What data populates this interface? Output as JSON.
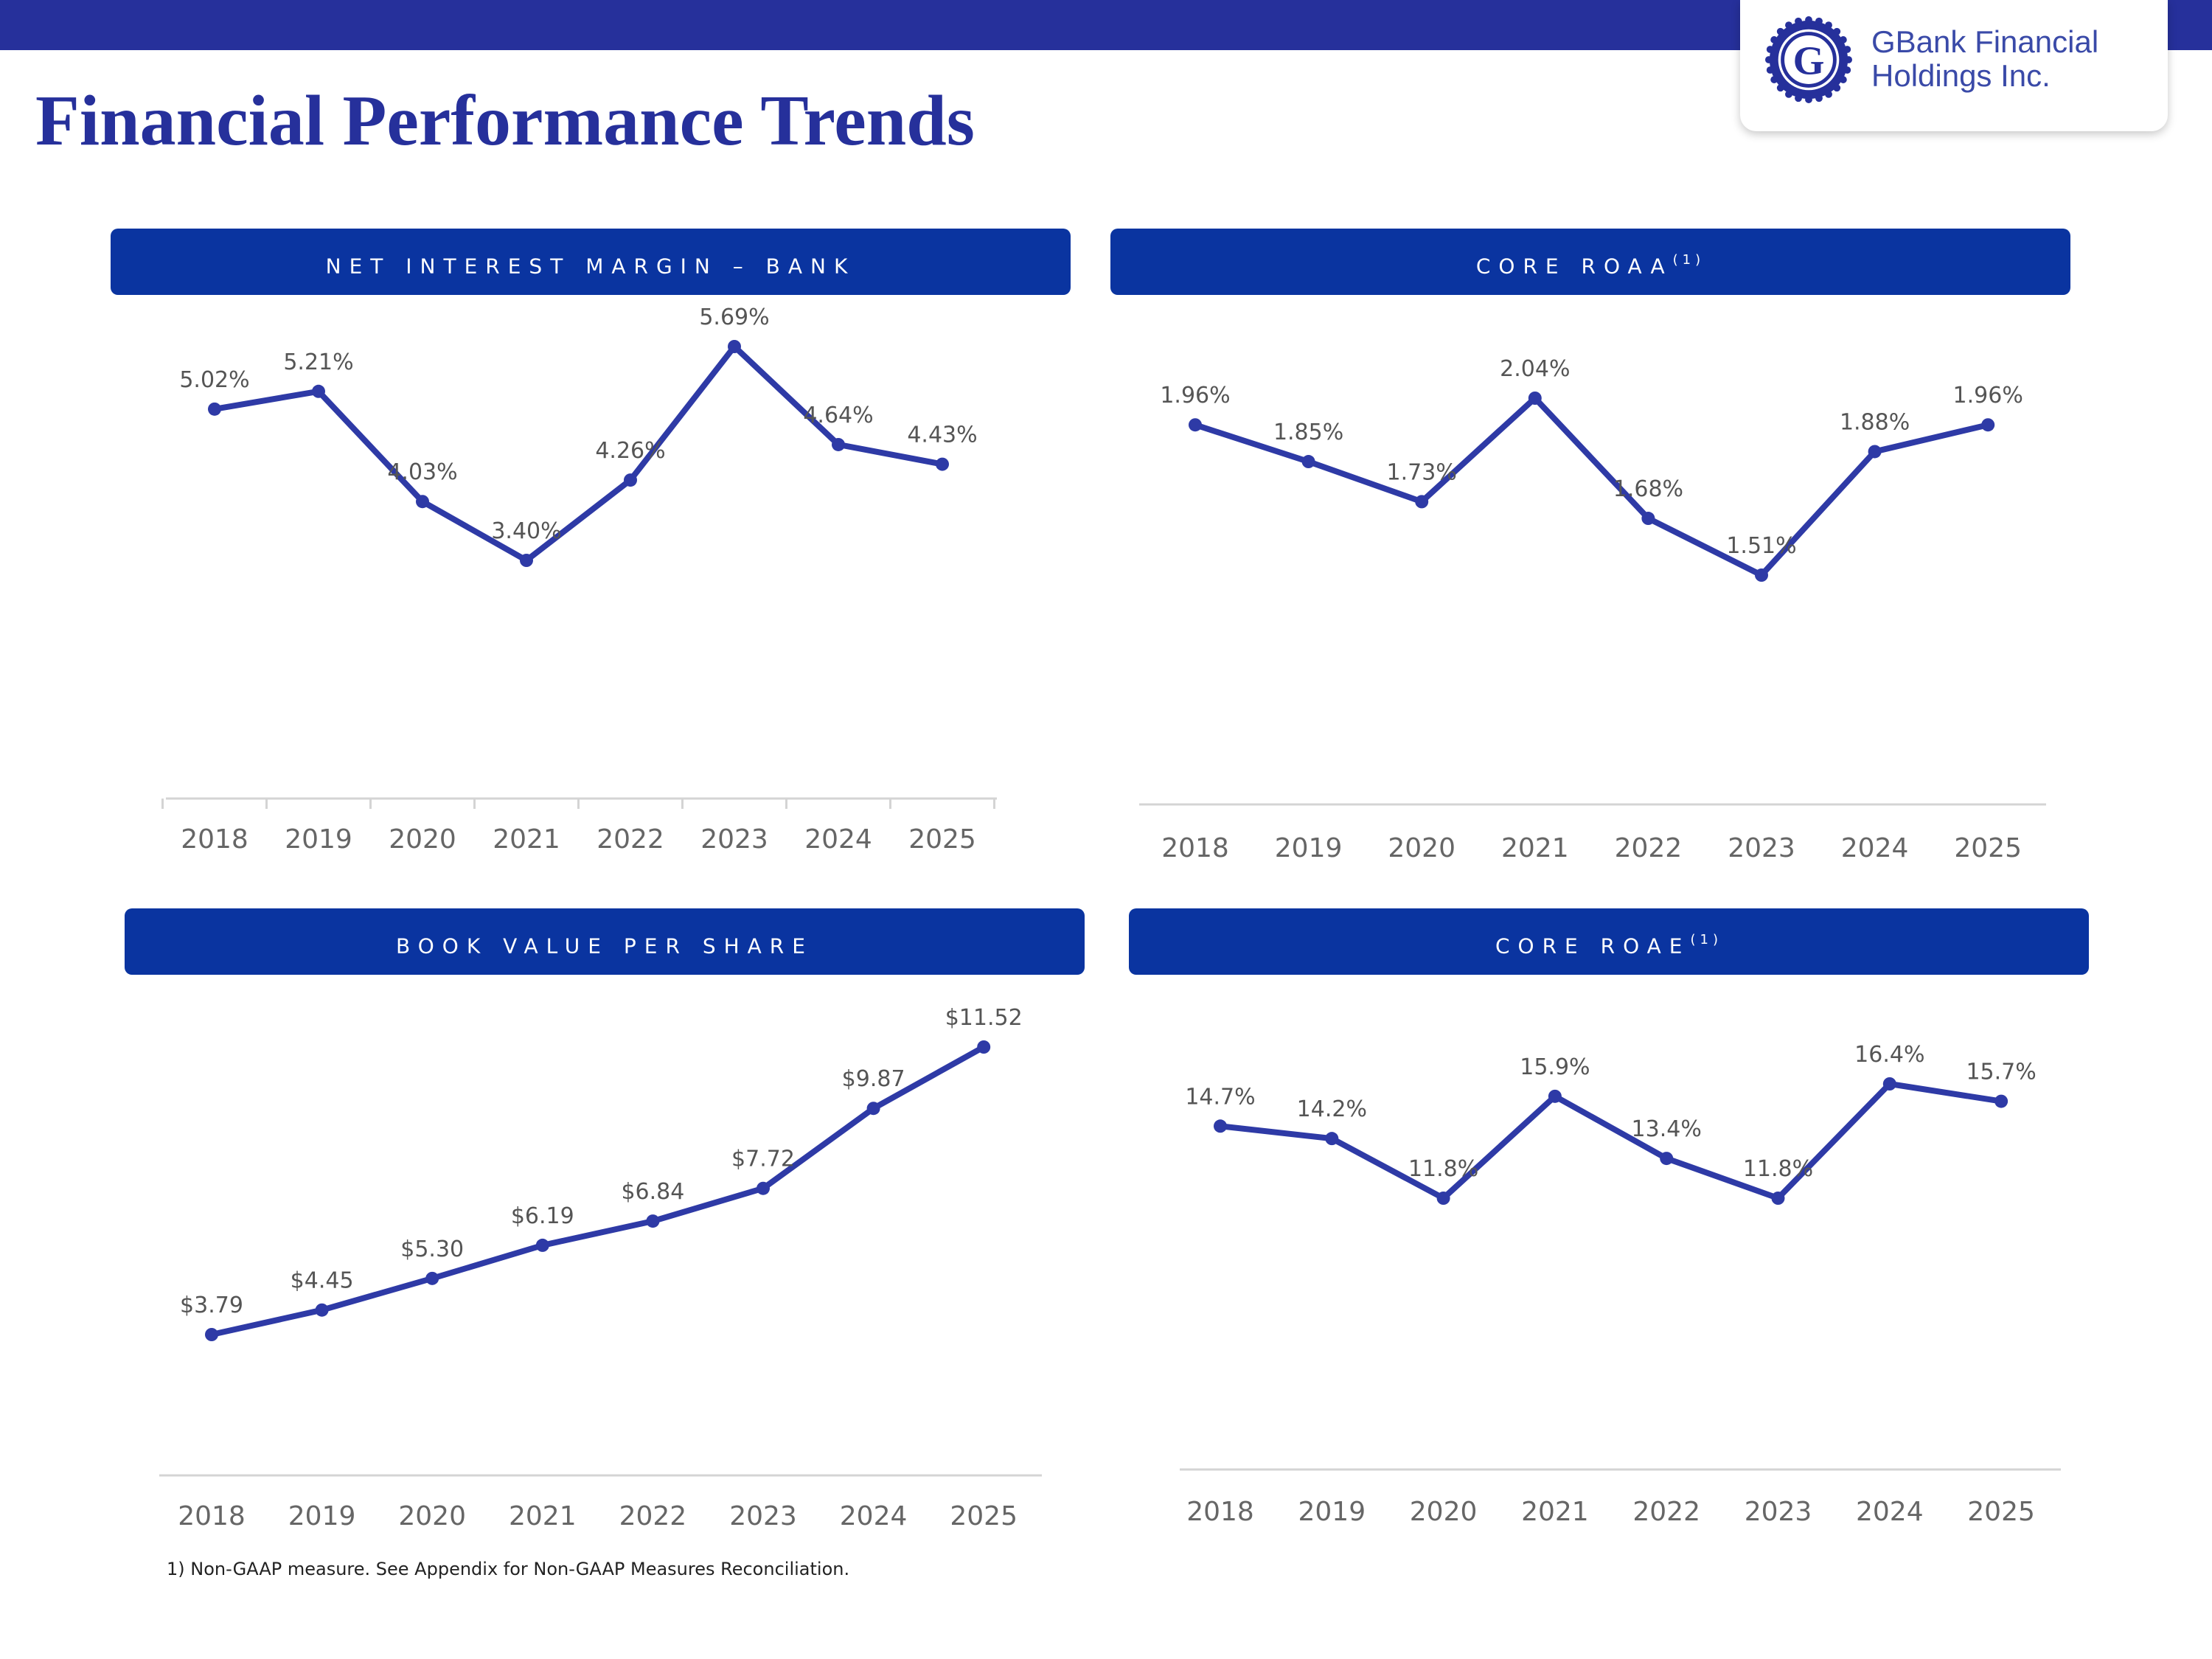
{
  "page": {
    "title": "Financial Performance Trends"
  },
  "logo": {
    "line1": "GBank Financial",
    "line2": "Holdings Inc."
  },
  "colors": {
    "accent": "#26309b",
    "header": "#0a34a0",
    "line": "#2e3aa6"
  },
  "chart_data": [
    {
      "type": "line",
      "title": "NET INTEREST MARGIN – BANK",
      "title_sup": "",
      "categories": [
        "2018",
        "2019",
        "2020",
        "2021",
        "2022",
        "2023",
        "2024",
        "2025"
      ],
      "values": [
        5.02,
        5.21,
        4.03,
        3.4,
        4.26,
        5.69,
        4.64,
        4.43
      ],
      "labels": [
        "5.02%",
        "5.21%",
        "4.03%",
        "3.40%",
        "4.26%",
        "5.69%",
        "4.64%",
        "4.43%"
      ],
      "ylim": [
        0,
        7
      ]
    },
    {
      "type": "line",
      "title": "CORE ROAA",
      "title_sup": "(1)",
      "categories": [
        "2018",
        "2019",
        "2020",
        "2021",
        "2022",
        "2023",
        "2024",
        "2025"
      ],
      "values": [
        1.96,
        1.85,
        1.73,
        2.04,
        1.68,
        1.51,
        1.88,
        1.96
      ],
      "labels": [
        "1.96%",
        "1.85%",
        "1.73%",
        "2.04%",
        "1.68%",
        "1.51%",
        "1.88%",
        "1.96%"
      ],
      "ylim": [
        0,
        2.4
      ]
    },
    {
      "type": "line",
      "title": "BOOK VALUE PER SHARE",
      "title_sup": "",
      "categories": [
        "2018",
        "2019",
        "2020",
        "2021",
        "2022",
        "2023",
        "2024",
        "2025"
      ],
      "values": [
        3.79,
        4.45,
        5.3,
        6.19,
        6.84,
        7.72,
        9.87,
        11.52
      ],
      "labels": [
        "$3.79",
        "$4.45",
        "$5.30",
        "$6.19",
        "$6.84",
        "$7.72",
        "$9.87",
        "$11.52"
      ],
      "ylim": [
        0,
        12
      ]
    },
    {
      "type": "line",
      "title": "CORE ROAE",
      "title_sup": "(1)",
      "categories": [
        "2018",
        "2019",
        "2020",
        "2021",
        "2022",
        "2023",
        "2024",
        "2025"
      ],
      "values": [
        14.7,
        14.2,
        11.8,
        15.9,
        13.4,
        11.8,
        16.4,
        15.7
      ],
      "labels": [
        "14.7%",
        "14.2%",
        "11.8%",
        "15.9%",
        "13.4%",
        "11.8%",
        "16.4%",
        "15.7%"
      ],
      "ylim": [
        0,
        20
      ]
    }
  ],
  "footnote": "1) Non-GAAP measure. See Appendix for Non-GAAP Measures Reconciliation."
}
